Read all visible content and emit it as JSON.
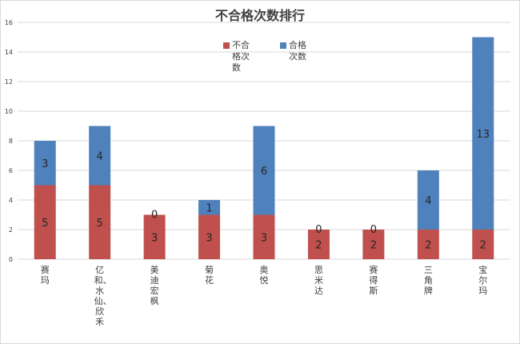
{
  "colors": {
    "fail": "#c0504d",
    "pass": "#4f81bd",
    "grid": "#d9d9d9",
    "text": "#404040"
  },
  "chart_data": {
    "type": "bar",
    "stacked": true,
    "title": "不合格次数排行",
    "categories": [
      "赛玛",
      "亿和、水仙、欣禾",
      "美迪宏枫",
      "菊花",
      "奥悦",
      "思米达",
      "赛得斯",
      "三角牌",
      "宝尔玛"
    ],
    "series": [
      {
        "name": "不合格次数",
        "values": [
          5,
          5,
          3,
          3,
          3,
          2,
          2,
          2,
          2
        ]
      },
      {
        "name": "合格次数",
        "values": [
          3,
          4,
          0,
          1,
          6,
          0,
          0,
          4,
          13
        ]
      }
    ],
    "ylim": [
      0,
      16
    ],
    "yticks": [
      0,
      2,
      4,
      6,
      8,
      10,
      12,
      14,
      16
    ],
    "grid": true,
    "legend": "top"
  }
}
